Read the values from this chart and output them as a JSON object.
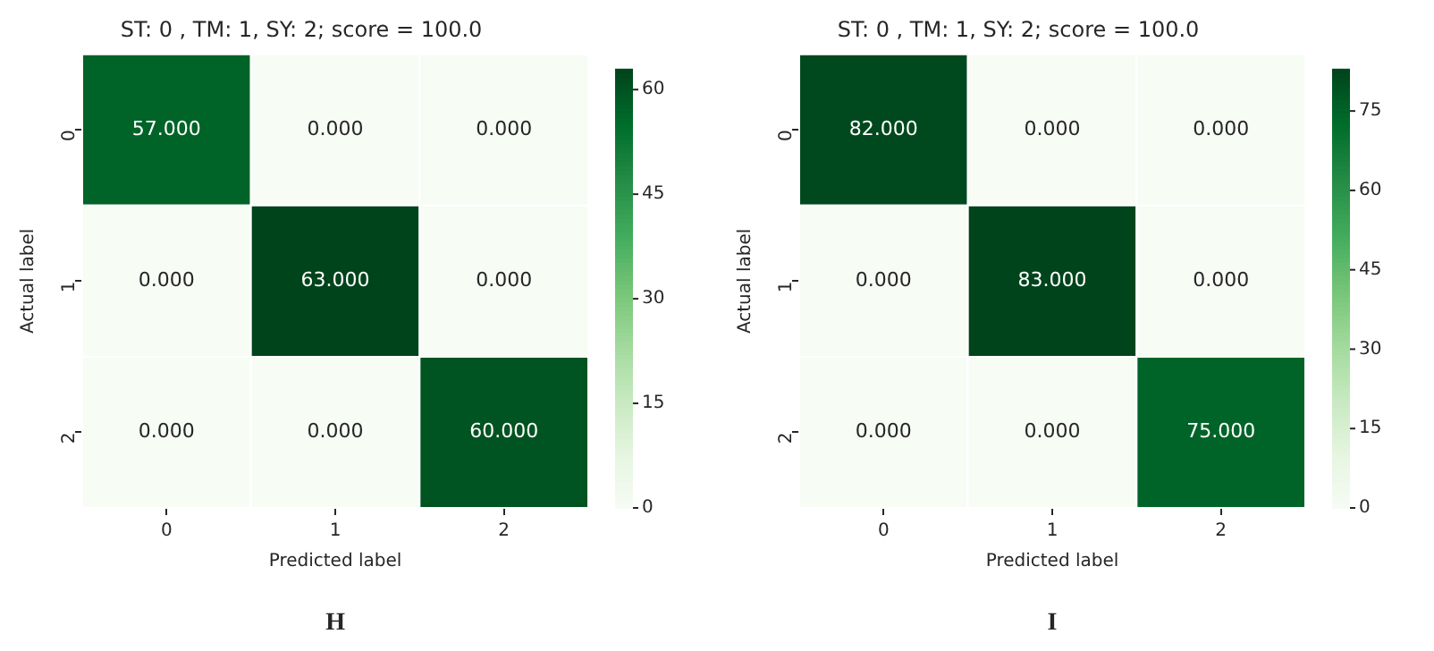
{
  "chart_data": [
    {
      "type": "heatmap",
      "title": "ST: 0 , TM: 1, SY: 2; score = 100.0",
      "xlabel": "Predicted label",
      "ylabel": "Actual label",
      "categories": [
        "0",
        "1",
        "2"
      ],
      "y_categories": [
        "0",
        "1",
        "2"
      ],
      "cells": [
        [
          57,
          0,
          0
        ],
        [
          0,
          63,
          0
        ],
        [
          0,
          0,
          60
        ]
      ],
      "cell_labels": [
        [
          "57.000",
          "0.000",
          "0.000"
        ],
        [
          "0.000",
          "63.000",
          "0.000"
        ],
        [
          "0.000",
          "0.000",
          "60.000"
        ]
      ],
      "clim": [
        0,
        63
      ],
      "cticks": [
        0,
        15,
        30,
        45,
        60
      ],
      "annotations": [
        "H"
      ]
    },
    {
      "type": "heatmap",
      "title": "ST: 0 , TM: 1, SY: 2; score = 100.0",
      "xlabel": "Predicted label",
      "ylabel": "Actual label",
      "categories": [
        "0",
        "1",
        "2"
      ],
      "y_categories": [
        "0",
        "1",
        "2"
      ],
      "cells": [
        [
          82,
          0,
          0
        ],
        [
          0,
          83,
          0
        ],
        [
          0,
          0,
          75
        ]
      ],
      "cell_labels": [
        [
          "82.000",
          "0.000",
          "0.000"
        ],
        [
          "0.000",
          "83.000",
          "0.000"
        ],
        [
          "0.000",
          "0.000",
          "75.000"
        ]
      ],
      "clim": [
        0,
        83
      ],
      "cticks": [
        0,
        15,
        30,
        45,
        60,
        75
      ],
      "annotations": [
        "I"
      ]
    }
  ]
}
